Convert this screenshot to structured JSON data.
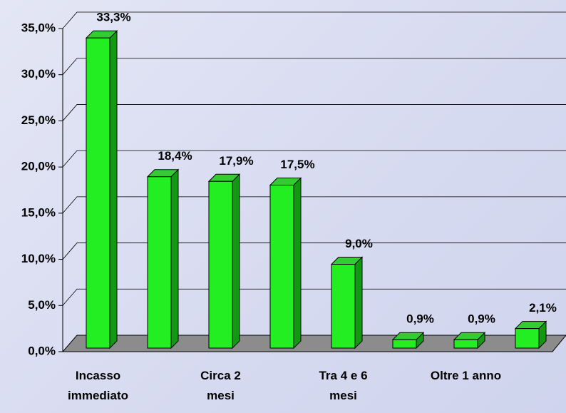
{
  "chart_data": {
    "type": "bar",
    "categories": [
      "Incasso immediato",
      null,
      "Circa 2 mesi",
      null,
      "Tra 4 e 6 mesi",
      null,
      "Oltre 1 anno",
      null
    ],
    "values": [
      33.3,
      18.4,
      17.9,
      17.5,
      9.0,
      0.9,
      0.9,
      2.1
    ],
    "value_labels": [
      "33,3%",
      "18,4%",
      "17,9%",
      "17,5%",
      "9,0%",
      "0,9%",
      "0,9%",
      "2,1%"
    ],
    "color": "#22ee22",
    "ylim": [
      0,
      35
    ],
    "yticks": [
      {
        "value": 0,
        "label": "0,0%"
      },
      {
        "value": 5,
        "label": "5,0%"
      },
      {
        "value": 10,
        "label": "10,0%"
      },
      {
        "value": 15,
        "label": "15,0%"
      },
      {
        "value": 20,
        "label": "20,0%"
      },
      {
        "value": 25,
        "label": "25,0%"
      },
      {
        "value": 30,
        "label": "30,0%"
      },
      {
        "value": 35,
        "label": "35,0%"
      }
    ],
    "grid": true
  }
}
